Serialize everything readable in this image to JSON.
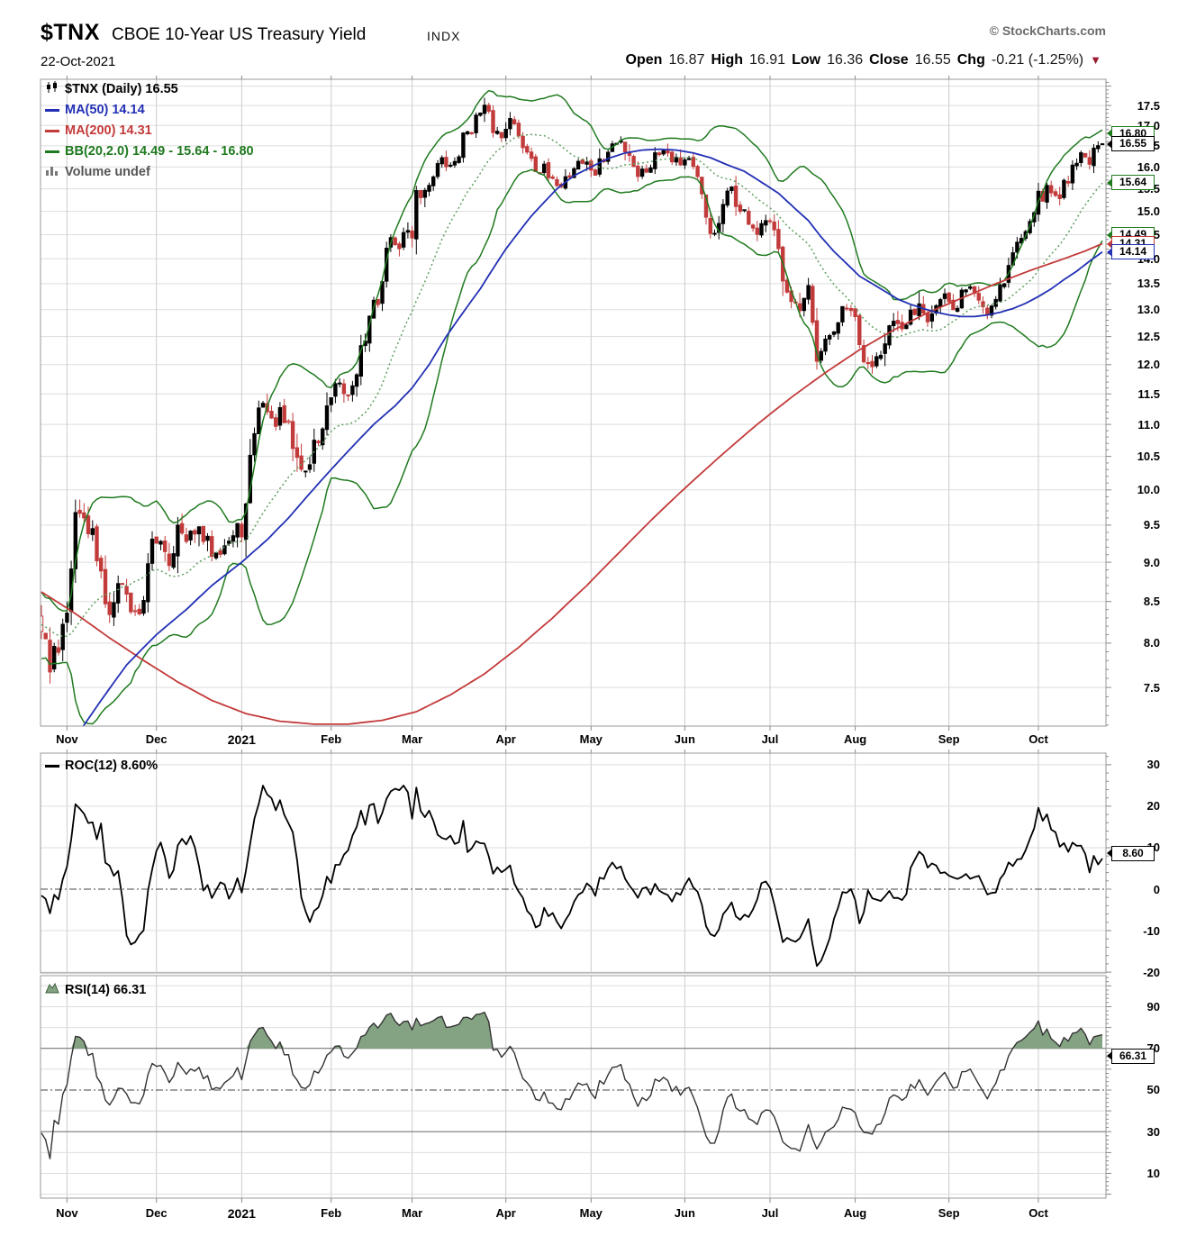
{
  "header": {
    "symbol": "$TNX",
    "name": "CBOE 10-Year US Treasury Yield",
    "exchange": "INDX",
    "date": "22-Oct-2021",
    "credit": "© StockCharts.com",
    "ohlc": {
      "open_label": "Open",
      "open": "16.87",
      "high_label": "High",
      "high": "16.91",
      "low_label": "Low",
      "low": "16.36",
      "close_label": "Close",
      "close": "16.55",
      "chg_label": "Chg",
      "chg": "-0.21 (-1.25%)",
      "down_arrow": "▼"
    }
  },
  "legend": {
    "title": "$TNX (Daily) 16.55",
    "ma50": "MA(50) 14.14",
    "ma200": "MA(200) 14.31",
    "bb": "BB(20,2.0) 14.49 - 15.64 - 16.80",
    "volume": "Volume undef"
  },
  "colors": {
    "up": "#000000",
    "down": "#c23b3b",
    "ma50": "#2230b4",
    "ma200": "#c33a3a",
    "bb": "#1f7a1f",
    "bb_mid": "#5f9f5f",
    "grid": "#dddddd",
    "grid_v": "#cccccc",
    "border": "#999999",
    "rsi_fill": "#84a383",
    "dashdot": "#444444",
    "band": "#777777",
    "arrow": "#9b1c31",
    "credit": "#6a6a6a"
  },
  "chart_data": [
    {
      "type": "candlestick",
      "title": "$TNX (Daily)",
      "last_close": 16.55,
      "scale": "log",
      "ylim": [
        7.09,
        18.18
      ],
      "grid": {
        "min": 7.5,
        "max": 18.0,
        "step": 0.5
      },
      "yticks": [
        17.5,
        17.0,
        16.5,
        16.0,
        15.5,
        15.0,
        14.5,
        14.0,
        13.5,
        13.0,
        12.5,
        12.0,
        11.5,
        11.0,
        10.5,
        10.0,
        9.5,
        9.0,
        8.5,
        8.0,
        7.5
      ],
      "x_labels": [
        "Nov",
        "Dec",
        "2021",
        "Feb",
        "Mar",
        "Apr",
        "May",
        "Jun",
        "Jul",
        "Aug",
        "Sep",
        "Oct"
      ],
      "bold_x_label_index": 2,
      "month_day_index": [
        6,
        27,
        47,
        68,
        87,
        109,
        129,
        151,
        171,
        191,
        213,
        234
      ],
      "n_days": 250,
      "pre_close_anchors": [
        [
          -19,
          8.6
        ],
        [
          -12,
          8.25
        ],
        [
          -6,
          7.95
        ],
        [
          -1,
          8.15
        ]
      ],
      "close_anchors": [
        [
          0,
          8.15
        ],
        [
          2,
          7.75
        ],
        [
          4,
          8.1
        ],
        [
          6,
          8.55
        ],
        [
          8,
          9.55
        ],
        [
          10,
          9.75
        ],
        [
          12,
          9.3
        ],
        [
          14,
          8.75
        ],
        [
          16,
          8.35
        ],
        [
          18,
          8.85
        ],
        [
          20,
          8.55
        ],
        [
          22,
          8.35
        ],
        [
          24,
          8.6
        ],
        [
          26,
          9.15
        ],
        [
          28,
          9.35
        ],
        [
          30,
          9.0
        ],
        [
          32,
          9.45
        ],
        [
          34,
          9.25
        ],
        [
          36,
          9.45
        ],
        [
          38,
          9.3
        ],
        [
          40,
          9.15
        ],
        [
          43,
          9.25
        ],
        [
          46,
          9.35
        ],
        [
          48,
          9.7
        ],
        [
          50,
          10.95
        ],
        [
          52,
          11.4
        ],
        [
          54,
          11.0
        ],
        [
          56,
          11.15
        ],
        [
          58,
          10.85
        ],
        [
          60,
          10.45
        ],
        [
          62,
          10.25
        ],
        [
          64,
          10.65
        ],
        [
          66,
          10.95
        ],
        [
          68,
          11.35
        ],
        [
          70,
          11.6
        ],
        [
          72,
          11.45
        ],
        [
          74,
          12.0
        ],
        [
          76,
          12.5
        ],
        [
          78,
          13.0
        ],
        [
          80,
          13.55
        ],
        [
          82,
          14.6
        ],
        [
          83,
          14.1
        ],
        [
          85,
          14.45
        ],
        [
          87,
          14.55
        ],
        [
          88,
          15.5
        ],
        [
          90,
          15.4
        ],
        [
          92,
          15.9
        ],
        [
          94,
          16.15
        ],
        [
          96,
          15.95
        ],
        [
          98,
          16.4
        ],
        [
          100,
          16.9
        ],
        [
          102,
          17.15
        ],
        [
          104,
          17.4
        ],
        [
          106,
          16.95
        ],
        [
          108,
          16.7
        ],
        [
          110,
          17.25
        ],
        [
          112,
          16.65
        ],
        [
          114,
          16.45
        ],
        [
          116,
          16.1
        ],
        [
          118,
          15.85
        ],
        [
          120,
          15.6
        ],
        [
          122,
          15.65
        ],
        [
          124,
          15.85
        ],
        [
          126,
          16.15
        ],
        [
          128,
          16.05
        ],
        [
          130,
          15.85
        ],
        [
          132,
          16.2
        ],
        [
          134,
          16.5
        ],
        [
          136,
          16.6
        ],
        [
          138,
          16.35
        ],
        [
          140,
          15.85
        ],
        [
          142,
          16.0
        ],
        [
          144,
          16.25
        ],
        [
          146,
          16.45
        ],
        [
          148,
          16.3
        ],
        [
          150,
          16.1
        ],
        [
          152,
          16.25
        ],
        [
          154,
          15.6
        ],
        [
          156,
          14.9
        ],
        [
          158,
          14.45
        ],
        [
          160,
          15.0
        ],
        [
          162,
          15.55
        ],
        [
          164,
          14.95
        ],
        [
          166,
          14.85
        ],
        [
          168,
          14.5
        ],
        [
          170,
          14.8
        ],
        [
          172,
          14.45
        ],
        [
          174,
          13.75
        ],
        [
          176,
          13.3
        ],
        [
          178,
          12.95
        ],
        [
          180,
          13.25
        ],
        [
          182,
          12.0
        ],
        [
          184,
          12.3
        ],
        [
          186,
          12.65
        ],
        [
          188,
          12.9
        ],
        [
          190,
          13.05
        ],
        [
          192,
          12.3
        ],
        [
          194,
          11.95
        ],
        [
          196,
          12.2
        ],
        [
          198,
          12.55
        ],
        [
          200,
          12.75
        ],
        [
          202,
          12.55
        ],
        [
          204,
          12.9
        ],
        [
          206,
          13.15
        ],
        [
          208,
          12.85
        ],
        [
          210,
          13.1
        ],
        [
          212,
          13.25
        ],
        [
          214,
          12.95
        ],
        [
          216,
          13.3
        ],
        [
          218,
          13.45
        ],
        [
          220,
          13.2
        ],
        [
          222,
          12.95
        ],
        [
          224,
          13.35
        ],
        [
          226,
          13.6
        ],
        [
          228,
          14.1
        ],
        [
          230,
          14.45
        ],
        [
          232,
          15.0
        ],
        [
          234,
          15.25
        ],
        [
          236,
          15.5
        ],
        [
          238,
          15.35
        ],
        [
          240,
          15.55
        ],
        [
          242,
          16.1
        ],
        [
          244,
          16.3
        ],
        [
          246,
          16.15
        ],
        [
          248,
          16.4
        ],
        [
          249,
          16.55
        ]
      ],
      "ma50": {
        "value": 14.14,
        "anchors": [
          [
            0,
            6.55
          ],
          [
            10,
            7.1
          ],
          [
            20,
            7.75
          ],
          [
            27,
            8.1
          ],
          [
            34,
            8.4
          ],
          [
            40,
            8.7
          ],
          [
            47,
            9.0
          ],
          [
            53,
            9.3
          ],
          [
            58,
            9.6
          ],
          [
            63,
            9.95
          ],
          [
            68,
            10.3
          ],
          [
            73,
            10.65
          ],
          [
            78,
            11.0
          ],
          [
            83,
            11.3
          ],
          [
            87,
            11.6
          ],
          [
            91,
            12.0
          ],
          [
            95,
            12.5
          ],
          [
            99,
            12.95
          ],
          [
            103,
            13.4
          ],
          [
            106,
            13.8
          ],
          [
            109,
            14.2
          ],
          [
            112,
            14.55
          ],
          [
            115,
            14.9
          ],
          [
            118,
            15.2
          ],
          [
            121,
            15.5
          ],
          [
            125,
            15.8
          ],
          [
            129,
            16.0
          ],
          [
            133,
            16.2
          ],
          [
            137,
            16.33
          ],
          [
            141,
            16.4
          ],
          [
            145,
            16.42
          ],
          [
            149,
            16.4
          ],
          [
            153,
            16.33
          ],
          [
            157,
            16.22
          ],
          [
            161,
            16.05
          ],
          [
            165,
            15.9
          ],
          [
            169,
            15.65
          ],
          [
            173,
            15.4
          ],
          [
            177,
            15.05
          ],
          [
            180,
            14.8
          ],
          [
            183,
            14.45
          ],
          [
            186,
            14.15
          ],
          [
            189,
            13.9
          ],
          [
            192,
            13.65
          ],
          [
            195,
            13.5
          ],
          [
            198,
            13.35
          ],
          [
            201,
            13.2
          ],
          [
            204,
            13.1
          ],
          [
            207,
            13.02
          ],
          [
            210,
            12.95
          ],
          [
            213,
            12.9
          ],
          [
            216,
            12.87
          ],
          [
            219,
            12.87
          ],
          [
            222,
            12.9
          ],
          [
            225,
            12.95
          ],
          [
            228,
            13.02
          ],
          [
            231,
            13.12
          ],
          [
            234,
            13.25
          ],
          [
            237,
            13.4
          ],
          [
            240,
            13.58
          ],
          [
            243,
            13.75
          ],
          [
            246,
            13.95
          ],
          [
            249,
            14.14
          ]
        ]
      },
      "ma200": {
        "value": 14.31,
        "anchors": [
          [
            0,
            8.62
          ],
          [
            8,
            8.35
          ],
          [
            16,
            8.06
          ],
          [
            24,
            7.8
          ],
          [
            32,
            7.56
          ],
          [
            40,
            7.36
          ],
          [
            48,
            7.22
          ],
          [
            56,
            7.14
          ],
          [
            64,
            7.11
          ],
          [
            72,
            7.11
          ],
          [
            80,
            7.15
          ],
          [
            88,
            7.24
          ],
          [
            96,
            7.42
          ],
          [
            104,
            7.65
          ],
          [
            112,
            7.95
          ],
          [
            120,
            8.3
          ],
          [
            128,
            8.7
          ],
          [
            136,
            9.15
          ],
          [
            144,
            9.62
          ],
          [
            152,
            10.08
          ],
          [
            160,
            10.54
          ],
          [
            168,
            11.0
          ],
          [
            176,
            11.44
          ],
          [
            184,
            11.86
          ],
          [
            192,
            12.26
          ],
          [
            200,
            12.62
          ],
          [
            208,
            12.94
          ],
          [
            216,
            13.22
          ],
          [
            224,
            13.5
          ],
          [
            232,
            13.76
          ],
          [
            240,
            14.0
          ],
          [
            245,
            14.16
          ],
          [
            249,
            14.31
          ]
        ]
      },
      "bb": {
        "period": 20,
        "stdev": 2.0,
        "lower": 14.49,
        "mid": 15.64,
        "upper": 16.8
      },
      "price_callouts": [
        {
          "text": "16.80",
          "value": 16.8,
          "color_key": "bb"
        },
        {
          "text": "15.64",
          "value": 15.64,
          "color_key": "bb"
        },
        {
          "text": "14.49",
          "value": 14.49,
          "color_key": "bb"
        },
        {
          "text": "14.31",
          "value": 14.31,
          "color_key": "ma200"
        },
        {
          "text": "14.14",
          "value": 14.14,
          "color_key": "ma50"
        },
        {
          "text": "16.55",
          "value": 16.55,
          "color_key": "last"
        }
      ]
    },
    {
      "type": "line",
      "indicator": "ROC",
      "label": "ROC(12) 8.60%",
      "period": 12,
      "last_value": 8.6,
      "ylim": [
        -20.2,
        32.8
      ],
      "yticks": [
        30,
        20,
        10,
        0,
        -10,
        -20
      ],
      "zero_line": 0,
      "callout": {
        "text": "8.60",
        "value": 8.6
      },
      "derived_from": "close_anchors"
    },
    {
      "type": "line",
      "indicator": "RSI",
      "label": "RSI(14) 66.31",
      "period": 14,
      "last_value": 66.31,
      "ylim": [
        -1.9,
        104.9
      ],
      "yticks": [
        90,
        70,
        50,
        30,
        10
      ],
      "grid_values": [
        100,
        90,
        80,
        60,
        40,
        20,
        10,
        0
      ],
      "overbought": 70,
      "oversold": 30,
      "midline": 50,
      "callout": {
        "text": "66.31",
        "value": 66.31
      },
      "derived_from": "close_anchors"
    }
  ]
}
